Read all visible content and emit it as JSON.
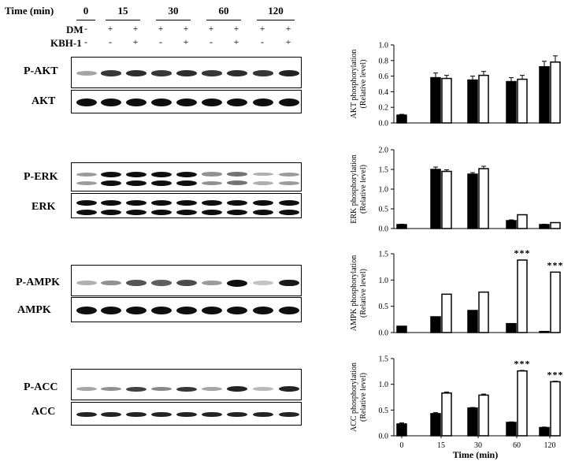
{
  "header": {
    "time_label": "Time (min)",
    "dm_label": "DM",
    "kbh_label": "KBH-1",
    "time_points": [
      "0",
      "15",
      "30",
      "60",
      "120"
    ],
    "dm_signs": [
      "-",
      "+",
      "+",
      "+",
      "+",
      "+",
      "+",
      "+",
      "+"
    ],
    "kbh_signs": [
      "-",
      "-",
      "+",
      "-",
      "+",
      "-",
      "+",
      "-",
      "+"
    ]
  },
  "blots": [
    {
      "label": "P-AKT",
      "intensity": [
        0.25,
        0.8,
        0.85,
        0.8,
        0.85,
        0.8,
        0.85,
        0.8,
        0.9
      ]
    },
    {
      "label": "AKT",
      "intensity": [
        1,
        1,
        1,
        1,
        1,
        1,
        1,
        1,
        1
      ]
    },
    {
      "label": "P-ERK",
      "intensity": [
        0.3,
        1,
        1,
        1,
        1,
        0.35,
        0.5,
        0.2,
        0.3
      ]
    },
    {
      "label": "ERK",
      "intensity": [
        1,
        1,
        1,
        1,
        1,
        1,
        1,
        1,
        1
      ]
    },
    {
      "label": "P-AMPK",
      "intensity": [
        0.2,
        0.35,
        0.65,
        0.6,
        0.7,
        0.3,
        1,
        0.1,
        0.95
      ]
    },
    {
      "label": "AMPK",
      "intensity": [
        1,
        1,
        1,
        1,
        1,
        1,
        1,
        1,
        1
      ]
    },
    {
      "label": "P-ACC",
      "intensity": [
        0.25,
        0.35,
        0.75,
        0.4,
        0.8,
        0.25,
        0.9,
        0.15,
        0.9
      ]
    },
    {
      "label": "ACC",
      "intensity": [
        0.9,
        0.9,
        0.9,
        0.9,
        0.9,
        0.9,
        0.9,
        0.9,
        0.9
      ]
    }
  ],
  "chart_data": [
    {
      "type": "bar",
      "ylabel": "AKT phosphorylation (Relative level)",
      "ylim": [
        0,
        1.0
      ],
      "yticks": [
        "0.0",
        "0.2",
        "0.4",
        "0.6",
        "0.8",
        "1.0"
      ],
      "categories": [
        "0",
        "15",
        "30",
        "60",
        "120"
      ],
      "series": [
        {
          "values": [
            0.1,
            0.58,
            0.55,
            0.53,
            0.72
          ],
          "errors": [
            0.01,
            0.06,
            0.05,
            0.05,
            0.07
          ],
          "color": "#000000"
        },
        {
          "values": [
            null,
            0.57,
            0.61,
            0.56,
            0.78
          ],
          "errors": [
            null,
            0.04,
            0.05,
            0.05,
            0.08
          ],
          "color": "#ffffff"
        }
      ],
      "stars": [
        "",
        "",
        "",
        "",
        ""
      ]
    },
    {
      "type": "bar",
      "ylabel": "ERK phosphorylation (Relative level)",
      "ylim": [
        0,
        2.0
      ],
      "yticks": [
        "0.0",
        "0.5",
        "1.0",
        "1.5",
        "2.0"
      ],
      "categories": [
        "0",
        "15",
        "30",
        "60",
        "120"
      ],
      "series": [
        {
          "values": [
            0.1,
            1.5,
            1.38,
            0.2,
            0.1
          ],
          "errors": [
            0.01,
            0.06,
            0.04,
            0.02,
            0.01
          ],
          "color": "#000000"
        },
        {
          "values": [
            null,
            1.45,
            1.52,
            0.35,
            0.15
          ],
          "errors": [
            null,
            0.04,
            0.06,
            0,
            0
          ],
          "color": "#ffffff"
        }
      ],
      "stars": [
        "",
        "",
        "",
        "",
        ""
      ]
    },
    {
      "type": "bar",
      "ylabel": "AMPK phosphorylation (Relative level)",
      "ylim": [
        0,
        1.5
      ],
      "yticks": [
        "0.0",
        "0.5",
        "1.0",
        "1.5"
      ],
      "categories": [
        "0",
        "15",
        "30",
        "60",
        "120"
      ],
      "series": [
        {
          "values": [
            0.12,
            0.3,
            0.42,
            0.17,
            0.02
          ],
          "errors": [
            0,
            0,
            0,
            0,
            0
          ],
          "color": "#000000"
        },
        {
          "values": [
            null,
            0.73,
            0.77,
            1.38,
            1.15
          ],
          "errors": [
            null,
            0,
            0,
            0,
            0
          ],
          "color": "#ffffff"
        }
      ],
      "stars": [
        "",
        "",
        "",
        "***",
        "***"
      ]
    },
    {
      "type": "bar",
      "ylabel": "ACC phosphorylation (Relative level)",
      "ylim": [
        0,
        1.5
      ],
      "yticks": [
        "0.0",
        "0.5",
        "1.0",
        "1.5"
      ],
      "categories": [
        "0",
        "15",
        "30",
        "60",
        "120"
      ],
      "series": [
        {
          "values": [
            0.23,
            0.43,
            0.54,
            0.26,
            0.16
          ],
          "errors": [
            0.02,
            0.02,
            0.01,
            0.01,
            0.01
          ],
          "color": "#000000"
        },
        {
          "values": [
            null,
            0.83,
            0.79,
            1.26,
            1.05
          ],
          "errors": [
            null,
            0.02,
            0.02,
            0.01,
            0.01
          ],
          "color": "#ffffff"
        }
      ],
      "stars": [
        "",
        "",
        "",
        "***",
        "***"
      ],
      "xlabel": "Time (min)"
    }
  ]
}
